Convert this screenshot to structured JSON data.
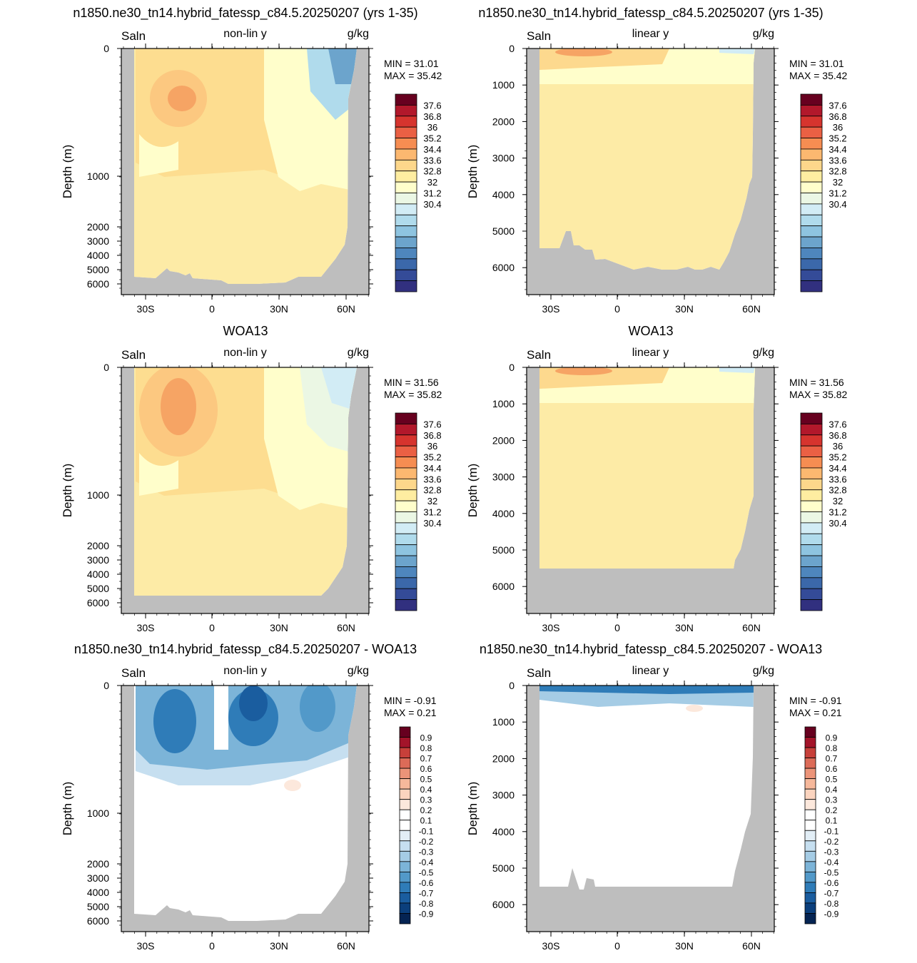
{
  "chart_data": [
    {
      "type": "heatmap",
      "row_title": "n1850.ne30_tn14.hybrid_fatessp_c84.5.20250207 (yrs 1-35)",
      "left_label": "Saln",
      "center_label": "non-lin y",
      "right_label": "g/kg",
      "ylabel": "Depth (m)",
      "y_scale": "non-linear",
      "y_ticks": [
        "0",
        "1000",
        "2000",
        "3000",
        "4000",
        "5000",
        "6000"
      ],
      "x_ticks": [
        "30S",
        "0",
        "30N",
        "60N"
      ],
      "min_text": "MIN =  31.01",
      "max_text": "MAX =  35.42",
      "colorbar_labels": [
        "37.6",
        "36.8",
        "36",
        "35.2",
        "34.4",
        "33.6",
        "32.8",
        "32",
        "31.2",
        "30.4"
      ],
      "colorbar_type": "salinity"
    },
    {
      "type": "heatmap",
      "row_title": "n1850.ne30_tn14.hybrid_fatessp_c84.5.20250207 (yrs 1-35)",
      "left_label": "Saln",
      "center_label": "linear y",
      "right_label": "g/kg",
      "ylabel": "Depth (m)",
      "y_scale": "linear",
      "y_ticks": [
        "0",
        "1000",
        "2000",
        "3000",
        "4000",
        "5000",
        "6000"
      ],
      "x_ticks": [
        "30S",
        "0",
        "30N",
        "60N"
      ],
      "min_text": "MIN =  31.01",
      "max_text": "MAX =  35.42",
      "colorbar_labels": [
        "37.6",
        "36.8",
        "36",
        "35.2",
        "34.4",
        "33.6",
        "32.8",
        "32",
        "31.2",
        "30.4"
      ],
      "colorbar_type": "salinity"
    },
    {
      "type": "heatmap",
      "row_title": "WOA13",
      "left_label": "Saln",
      "center_label": "non-lin y",
      "right_label": "g/kg",
      "ylabel": "Depth (m)",
      "y_scale": "non-linear",
      "y_ticks": [
        "0",
        "1000",
        "2000",
        "3000",
        "4000",
        "5000",
        "6000"
      ],
      "x_ticks": [
        "30S",
        "0",
        "30N",
        "60N"
      ],
      "min_text": "MIN =  31.56",
      "max_text": "MAX =  35.82",
      "colorbar_labels": [
        "37.6",
        "36.8",
        "36",
        "35.2",
        "34.4",
        "33.6",
        "32.8",
        "32",
        "31.2",
        "30.4"
      ],
      "colorbar_type": "salinity"
    },
    {
      "type": "heatmap",
      "row_title": "WOA13",
      "left_label": "Saln",
      "center_label": "linear y",
      "right_label": "g/kg",
      "ylabel": "Depth (m)",
      "y_scale": "linear",
      "y_ticks": [
        "0",
        "1000",
        "2000",
        "3000",
        "4000",
        "5000",
        "6000"
      ],
      "x_ticks": [
        "30S",
        "0",
        "30N",
        "60N"
      ],
      "min_text": "MIN =  31.56",
      "max_text": "MAX =  35.82",
      "colorbar_labels": [
        "37.6",
        "36.8",
        "36",
        "35.2",
        "34.4",
        "33.6",
        "32.8",
        "32",
        "31.2",
        "30.4"
      ],
      "colorbar_type": "salinity"
    },
    {
      "type": "heatmap",
      "row_title": "n1850.ne30_tn14.hybrid_fatessp_c84.5.20250207 - WOA13",
      "left_label": "Saln",
      "center_label": "non-lin y",
      "right_label": "g/kg",
      "ylabel": "Depth (m)",
      "y_scale": "non-linear",
      "y_ticks": [
        "0",
        "1000",
        "2000",
        "3000",
        "4000",
        "5000",
        "6000"
      ],
      "x_ticks": [
        "30S",
        "0",
        "30N",
        "60N"
      ],
      "min_text": "MIN =  -0.91",
      "max_text": "MAX =   0.21",
      "colorbar_labels": [
        "0.9",
        "0.8",
        "0.7",
        "0.6",
        "0.5",
        "0.4",
        "0.3",
        "0.2",
        "0.1",
        "-0.1",
        "-0.2",
        "-0.3",
        "-0.4",
        "-0.5",
        "-0.6",
        "-0.7",
        "-0.8",
        "-0.9"
      ],
      "colorbar_type": "difference"
    },
    {
      "type": "heatmap",
      "row_title": "n1850.ne30_tn14.hybrid_fatessp_c84.5.20250207 - WOA13",
      "left_label": "Saln",
      "center_label": "linear y",
      "right_label": "g/kg",
      "ylabel": "Depth (m)",
      "y_scale": "linear",
      "y_ticks": [
        "0",
        "1000",
        "2000",
        "3000",
        "4000",
        "5000",
        "6000"
      ],
      "x_ticks": [
        "30S",
        "0",
        "30N",
        "60N"
      ],
      "min_text": "MIN =  -0.91",
      "max_text": "MAX =   0.21",
      "colorbar_labels": [
        "0.9",
        "0.8",
        "0.7",
        "0.6",
        "0.5",
        "0.4",
        "0.3",
        "0.2",
        "0.1",
        "-0.1",
        "-0.2",
        "-0.3",
        "-0.4",
        "-0.5",
        "-0.6",
        "-0.7",
        "-0.8",
        "-0.9"
      ],
      "colorbar_type": "difference"
    }
  ],
  "colors": {
    "land": "#bebebe",
    "background_salinity": "#fdeba6",
    "salinity_scale": [
      "#67001f",
      "#b2182b",
      "#d6342e",
      "#ea6044",
      "#f68d52",
      "#fcb870",
      "#fdd78b",
      "#feeda1",
      "#fffecb",
      "#ebf7e4",
      "#d2ecf5",
      "#b0dbec",
      "#8ec4e0",
      "#6ca4cc",
      "#4e86bd",
      "#3b68aa",
      "#344b98",
      "#31307f"
    ],
    "difference_scale": [
      "#67001f",
      "#a3142a",
      "#c7403a",
      "#dc6b58",
      "#ec9479",
      "#f6b89b",
      "#fbd4bf",
      "#fce8dc",
      "#ffffff",
      "#ffffff",
      "#e2eef6",
      "#c6dff0",
      "#a5cce5",
      "#7cb4d8",
      "#5299c9",
      "#2f7cb8",
      "#1a5d9f",
      "#0b3f7c",
      "#052453"
    ]
  }
}
